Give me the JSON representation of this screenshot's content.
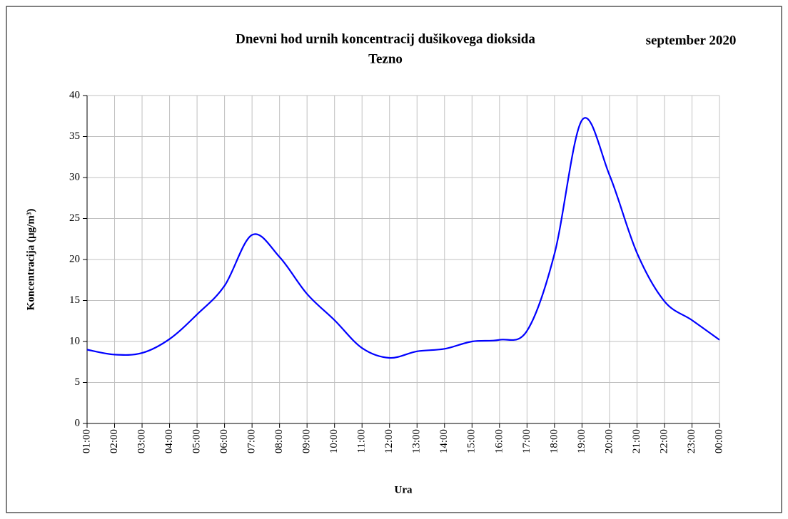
{
  "chart_data": {
    "type": "line",
    "title": "Dnevni hod urnih  koncentracij dušikovega dioksida",
    "subtitle": "Tezno",
    "period": "september 2020",
    "x_label": "Ura",
    "y_label": "Koncentracija  (µg/m³)",
    "categories": [
      "01:00",
      "02:00",
      "03:00",
      "04:00",
      "05:00",
      "06:00",
      "07:00",
      "08:00",
      "09:00",
      "10:00",
      "11:00",
      "12:00",
      "13:00",
      "14:00",
      "15:00",
      "16:00",
      "17:00",
      "18:00",
      "19:00",
      "20:00",
      "21:00",
      "22:00",
      "23:00",
      "00:00"
    ],
    "values": [
      9.0,
      8.4,
      8.6,
      10.3,
      13.3,
      16.8,
      23.0,
      20.3,
      15.8,
      12.6,
      9.2,
      8.0,
      8.8,
      9.1,
      10.0,
      10.2,
      11.3,
      20.7,
      37.0,
      30.3,
      20.8,
      14.9,
      12.6,
      10.2
    ],
    "color": "#0000ff",
    "ylim": [
      0,
      40
    ],
    "yticks": [
      0,
      5,
      10,
      15,
      20,
      25,
      30,
      35,
      40
    ],
    "grid": true
  }
}
